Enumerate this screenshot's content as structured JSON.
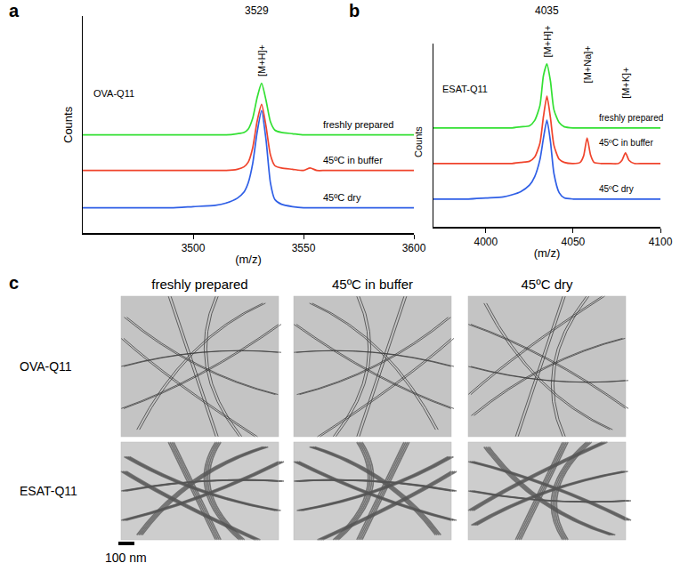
{
  "chart_data": [
    {
      "type": "line",
      "panel_label": "a",
      "inset_label": "OVA-Q11",
      "xlabel": "(m/z)",
      "ylabel": "Counts",
      "peak_mz": 3529,
      "ion_labels": [
        {
          "x": 3531,
          "text": "[M+H]+"
        }
      ],
      "x": [
        3450,
        3460,
        3470,
        3480,
        3490,
        3500,
        3510,
        3515,
        3520,
        3523,
        3525,
        3527,
        3529,
        3531,
        3533,
        3535,
        3537,
        3540,
        3545,
        3550,
        3553,
        3556,
        3560,
        3570,
        3580,
        3590,
        3600
      ],
      "series": [
        {
          "name": "freshly prepared",
          "color": "#33e033",
          "values": [
            1,
            1,
            1,
            1,
            1,
            1,
            1,
            1,
            2,
            3,
            6,
            15,
            32,
            44,
            30,
            12,
            5,
            3,
            2,
            1,
            1,
            1,
            1,
            1,
            1,
            1,
            1
          ]
        },
        {
          "name": "45ºC in buffer",
          "color": "#f0442c",
          "values": [
            1,
            1,
            1,
            1,
            1,
            1,
            1,
            1,
            2,
            4,
            8,
            20,
            42,
            56,
            38,
            14,
            5,
            3,
            2,
            1,
            3,
            1,
            1,
            1,
            1,
            1,
            1
          ]
        },
        {
          "name": "45ºC dry",
          "color": "#2f5fe6",
          "values": [
            1,
            1,
            1,
            1,
            1,
            2,
            3,
            5,
            9,
            14,
            22,
            38,
            64,
            82,
            58,
            22,
            8,
            4,
            2,
            1,
            1,
            1,
            1,
            1,
            1,
            1,
            1
          ]
        }
      ],
      "xlim": [
        3450,
        3600
      ],
      "xticks": [
        3500,
        3550,
        3600
      ],
      "ylim": [
        -20,
        100
      ],
      "yticks": [],
      "tick_labels": "x",
      "grid": false
    },
    {
      "type": "line",
      "panel_label": "b",
      "inset_label": "ESAT-Q11",
      "xlabel": "(m/z)",
      "ylabel": "Counts",
      "peak_mz": 4035,
      "ion_labels": [
        {
          "x": 4035,
          "text": "[M+H]+"
        },
        {
          "x": 4058,
          "text": "[M+Na]+"
        },
        {
          "x": 4080,
          "text": "[M+K]+"
        }
      ],
      "x": [
        3970,
        3980,
        3990,
        4000,
        4010,
        4015,
        4020,
        4025,
        4028,
        4031,
        4033,
        4035,
        4037,
        4039,
        4042,
        4045,
        4050,
        4054,
        4056,
        4058,
        4060,
        4062,
        4066,
        4070,
        4076,
        4078,
        4080,
        4082,
        4085,
        4090,
        4100
      ],
      "series": [
        {
          "name": "freshly prepared",
          "color": "#33e033",
          "values": [
            1,
            1,
            1,
            1,
            1,
            1,
            2,
            3,
            8,
            22,
            50,
            61,
            45,
            18,
            6,
            2,
            1,
            1,
            1,
            1,
            1,
            1,
            1,
            1,
            1,
            1,
            1,
            1,
            1,
            1,
            1
          ]
        },
        {
          "name": "45ºC in buffer",
          "color": "#f0442c",
          "values": [
            1,
            1,
            1,
            1,
            1,
            1,
            2,
            3,
            7,
            20,
            45,
            64,
            44,
            18,
            5,
            2,
            1,
            2,
            8,
            25,
            9,
            2,
            1,
            1,
            1,
            4,
            11,
            4,
            1,
            1,
            1
          ]
        },
        {
          "name": "45ºC dry",
          "color": "#2f5fe6",
          "values": [
            1,
            1,
            1,
            2,
            3,
            5,
            8,
            14,
            22,
            38,
            58,
            75,
            55,
            25,
            7,
            2,
            1,
            1,
            1,
            1,
            1,
            1,
            1,
            1,
            1,
            1,
            1,
            1,
            1,
            1,
            1
          ]
        }
      ],
      "xlim": [
        3970,
        4100
      ],
      "xticks": [
        4000,
        4050,
        4100
      ],
      "ylim": [
        -25,
        80
      ],
      "yticks": [],
      "tick_labels": "x",
      "grid": false
    }
  ],
  "figure_c": {
    "panel_label": "c",
    "columns": [
      "freshly prepared",
      "45ºC in buffer",
      "45ºC dry"
    ],
    "rows": [
      "OVA-Q11",
      "ESAT-Q11"
    ],
    "scale_bar": "100 nm"
  }
}
